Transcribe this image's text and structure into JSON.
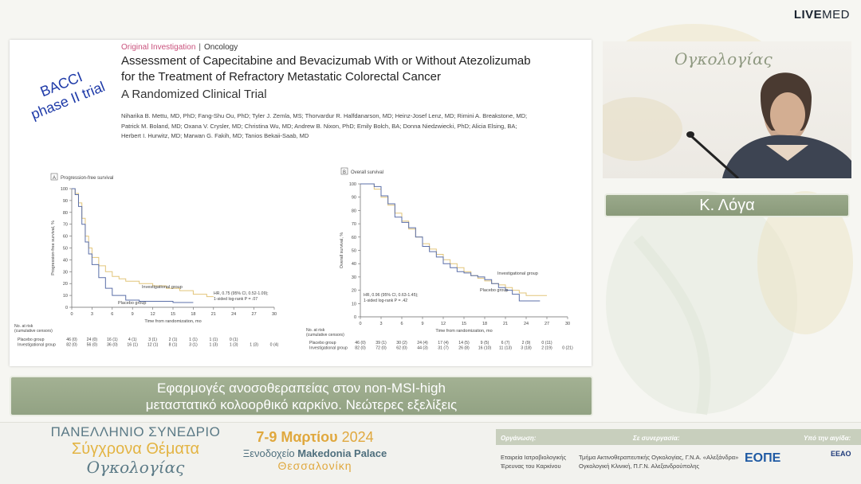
{
  "brand": {
    "bold": "LIVE",
    "light": "MED"
  },
  "slide": {
    "annotation": [
      "BACCI",
      "phase II trial"
    ],
    "tag_kind": "Original Investigation",
    "tag_sep": "|",
    "tag_dept": "Oncology",
    "title_lines": [
      "Assessment of Capecitabine and Bevacizumab With or Without Atezolizumab",
      "for the Treatment of Refractory Metastatic Colorectal Cancer"
    ],
    "subtitle": "A Randomized Clinical Trial",
    "authors": [
      "Niharika B. Mettu, MD, PhD; Fang-Shu Ou, PhD; Tyler J. Zemla, MS; Thorvardur R. Halfdanarson, MD; Heinz-Josef Lenz, MD; Rimini A. Breakstone, MD;",
      "Patrick M. Boland, MD; Oxana V. Crysler, MD; Christina Wu, MD; Andrew B. Nixon, PhD; Emily Bolch, BA; Donna Niedzwiecki, PhD; Alicia Elsing, BA;",
      "Herbert I. Hurwitz, MD; Marwan G. Fakih, MD; Tanios Bekaii-Saab, MD"
    ]
  },
  "chart_data": [
    {
      "type": "line",
      "panel": "A",
      "title": "Progression-free survival",
      "xlabel": "Time from randomization, mo",
      "ylabel": "Progression-free survival, %",
      "xlim": [
        0,
        30
      ],
      "ylim": [
        0,
        100
      ],
      "x_ticks": [
        0,
        3,
        6,
        9,
        12,
        15,
        18,
        21,
        24,
        27,
        30
      ],
      "y_ticks": [
        0,
        10,
        20,
        30,
        40,
        50,
        60,
        70,
        80,
        90,
        100
      ],
      "series": [
        {
          "name": "Investigational group",
          "color": "#e2c57a",
          "x": [
            0,
            0.5,
            1,
            1.5,
            2,
            2.5,
            3,
            4,
            5,
            6,
            7,
            8,
            10,
            12,
            14,
            16,
            18,
            20,
            21
          ],
          "y": [
            100,
            96,
            88,
            75,
            60,
            50,
            42,
            35,
            30,
            26,
            24,
            22,
            20,
            18,
            16,
            14,
            11,
            9,
            9
          ]
        },
        {
          "name": "Placebo group",
          "color": "#5b6fa8",
          "x": [
            0,
            0.5,
            1,
            1.5,
            2,
            2.5,
            3,
            4,
            5,
            6,
            8,
            10,
            12,
            15,
            18
          ],
          "y": [
            100,
            95,
            85,
            70,
            55,
            45,
            36,
            25,
            16,
            10,
            6,
            5,
            5,
            4,
            4
          ]
        }
      ],
      "annotation": [
        "HR, 0.75 (95% CI, 0.52-1.09);",
        "1-sided log-rank P = .07"
      ],
      "risk_header": [
        "No. at risk",
        "(cumulative censors)"
      ],
      "risk_rows": [
        {
          "label": "Placebo group",
          "values": [
            "46 (0)",
            "24 (0)",
            "16 (1)",
            "4 (1)",
            "3 (1)",
            "2 (1)",
            "1 (1)",
            "1 (1)",
            "0 (1)",
            "",
            ""
          ]
        },
        {
          "label": "Investigational group",
          "values": [
            "82 (0)",
            "56 (0)",
            "36 (0)",
            "16 (1)",
            "12 (1)",
            "8 (1)",
            "3 (1)",
            "1 (3)",
            "1 (3)",
            "1 (3)",
            "0 (4)"
          ]
        }
      ]
    },
    {
      "type": "line",
      "panel": "B",
      "title": "Overall survival",
      "xlabel": "Time from randomization, mo",
      "ylabel": "Overall survival, %",
      "xlim": [
        0,
        30
      ],
      "ylim": [
        0,
        100
      ],
      "x_ticks": [
        0,
        3,
        6,
        9,
        12,
        15,
        18,
        21,
        24,
        27,
        30
      ],
      "y_ticks": [
        0,
        10,
        20,
        30,
        40,
        50,
        60,
        70,
        80,
        90,
        100
      ],
      "series": [
        {
          "name": "Investigational group",
          "color": "#e2c57a",
          "x": [
            0,
            2,
            3,
            4,
            5,
            6,
            7,
            8,
            9,
            10,
            11,
            12,
            13,
            14,
            15,
            16,
            17,
            18,
            19,
            20,
            21,
            22,
            23,
            24,
            27
          ],
          "y": [
            100,
            96,
            90,
            84,
            78,
            72,
            66,
            60,
            55,
            51,
            47,
            43,
            40,
            37,
            34,
            31,
            29,
            27,
            25,
            24,
            22,
            20,
            18,
            16,
            16
          ]
        },
        {
          "name": "Placebo group",
          "color": "#5b6fa8",
          "x": [
            0,
            2,
            3,
            4,
            5,
            6,
            7,
            8,
            9,
            10,
            11,
            12,
            13,
            14,
            15,
            16,
            17,
            18,
            19,
            20,
            21,
            22,
            23,
            24,
            26
          ],
          "y": [
            100,
            98,
            91,
            85,
            75,
            71,
            67,
            60,
            53,
            49,
            45,
            40,
            37,
            34,
            33,
            31,
            30,
            28,
            25,
            22,
            20,
            17,
            12,
            12,
            12
          ]
        }
      ],
      "annotation": [
        "HR, 0.96 (95% CI, 0.63-1.45);",
        "1-sided log-rank P = .42"
      ],
      "risk_header": [
        "No. at risk",
        "(cumulative censors)"
      ],
      "risk_rows": [
        {
          "label": "Placebo group",
          "values": [
            "46 (0)",
            "39 (1)",
            "30 (2)",
            "24 (4)",
            "17 (4)",
            "14 (5)",
            "9 (5)",
            "6 (7)",
            "2 (9)",
            "0 (11)",
            ""
          ]
        },
        {
          "label": "Investigational group",
          "values": [
            "82 (0)",
            "72 (0)",
            "62 (0)",
            "44 (3)",
            "31 (7)",
            "26 (8)",
            "16 (10)",
            "11 (13)",
            "3 (18)",
            "2 (19)",
            "0 (21)"
          ]
        }
      ]
    }
  ],
  "speaker": {
    "name": "Κ. Λόγα",
    "backdrop_text": "Ογκολογίας"
  },
  "talk": {
    "line1": "Εφαρμογές ανοσοθεραπείας στον non-MSI-high",
    "line2": "μεταστατικό κολοορθικό καρκίνο. Νεώτερες εξελίξεις"
  },
  "footer": {
    "congress_l1": "ΠΑΝΕΛΛΗΝΙΟ ΣΥΝΕΔΡΙΟ",
    "congress_l2": "Σύγχρονα Θέματα",
    "congress_l3": "Ογκολογίας",
    "dates_bold": "7-9 Μαρτίου",
    "dates_year": "2024",
    "hotel_pre": "Ξενοδοχείο",
    "hotel_name": "Makedonia Palace",
    "city": "Θεσσαλονίκη",
    "org_label": "Οργάνωση:",
    "org_lines": [
      "Εταιρεία Ιατροβιολογικής",
      "Έρευνας του Καρκίνου"
    ],
    "collab_label": "Σε συνεργασία:",
    "collab_lines": [
      "Τμήμα Ακτινοθεραπευτικής Ογκολογίας, Γ.Ν.Α. «Αλεξάνδρα»",
      "Ογκολογική Κλινική, Π.Γ.Ν. Αλεξανδρούπολης"
    ],
    "aegis_label": "Υπό την αιγίδα:",
    "logo1": "ΕΟΠΕ",
    "logo2": "EEAO"
  }
}
